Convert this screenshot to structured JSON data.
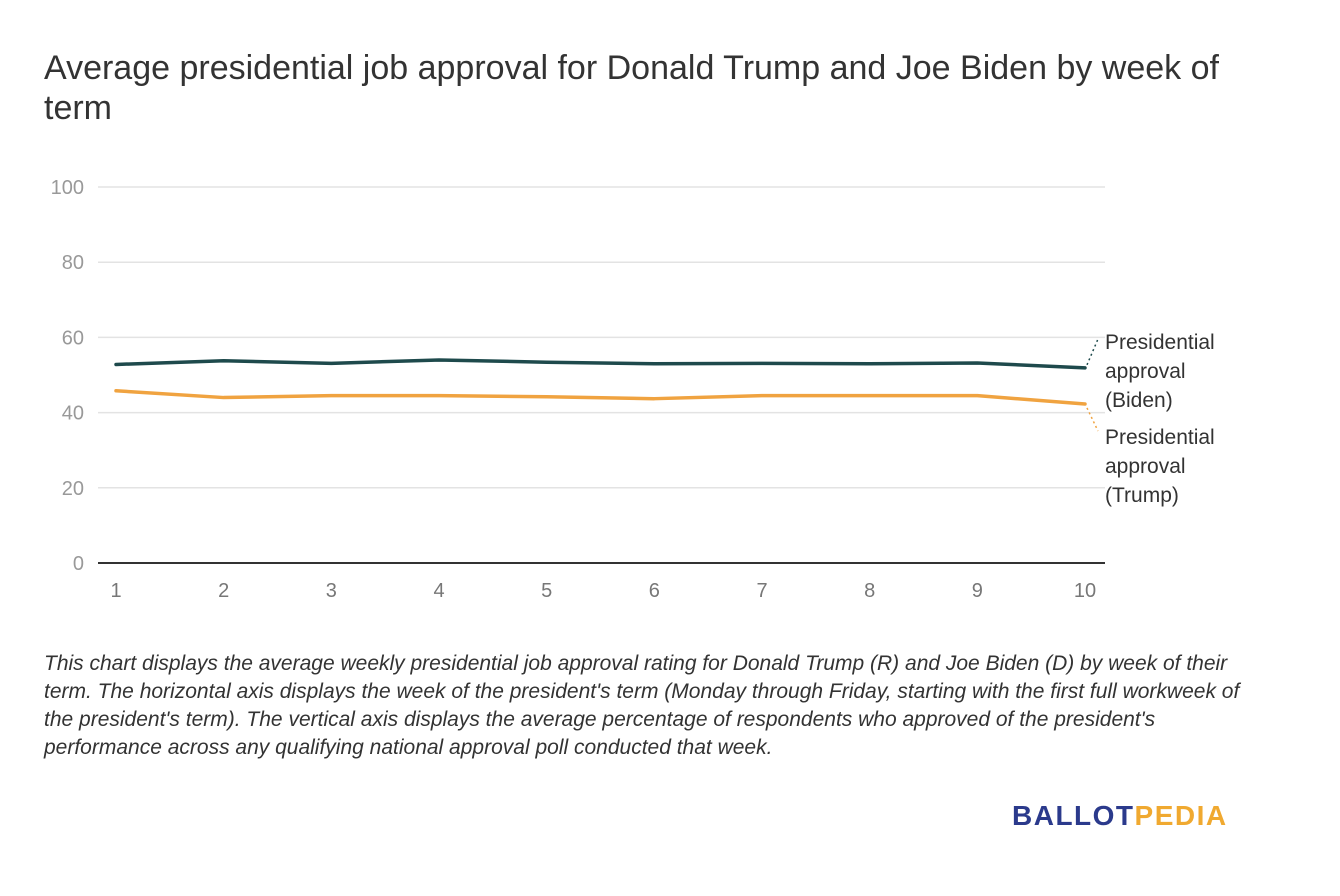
{
  "chart_data": {
    "type": "line",
    "title": "Average presidential job approval for Donald Trump and Joe Biden by week of term",
    "xlabel": "",
    "ylabel": "",
    "x": [
      1,
      2,
      3,
      4,
      5,
      6,
      7,
      8,
      9,
      10
    ],
    "ylim": [
      0,
      100
    ],
    "yticks": [
      0,
      20,
      40,
      60,
      80,
      100
    ],
    "grid": true,
    "series": [
      {
        "name": "Presidential approval (Biden)",
        "label_lines": [
          "Presidential",
          "approval",
          "(Biden)"
        ],
        "color": "#1e4a4c",
        "values": [
          52.8,
          53.8,
          53.1,
          54.0,
          53.4,
          53.0,
          53.1,
          53.0,
          53.2,
          51.9
        ]
      },
      {
        "name": "Presidential approval (Trump)",
        "label_lines": [
          "Presidential",
          "approval",
          "(Trump)"
        ],
        "color": "#f0a340",
        "values": [
          45.8,
          44.0,
          44.5,
          44.5,
          44.2,
          43.7,
          44.5,
          44.5,
          44.5,
          42.3
        ]
      }
    ]
  },
  "caption": "This chart displays the average weekly presidential job approval rating for Donald Trump (R) and Joe Biden (D) by week of their term. The horizontal axis displays the week of the president's term (Monday through Friday, starting with the first full workweek of the president's term). The vertical axis displays the average percentage of respondents who approved of the president's performance across any qualifying national approval poll conducted that week.",
  "logo": {
    "part1": "BALLOT",
    "part2": "PEDIA",
    "color1": "#2b3a8c",
    "color2": "#f0a930"
  }
}
